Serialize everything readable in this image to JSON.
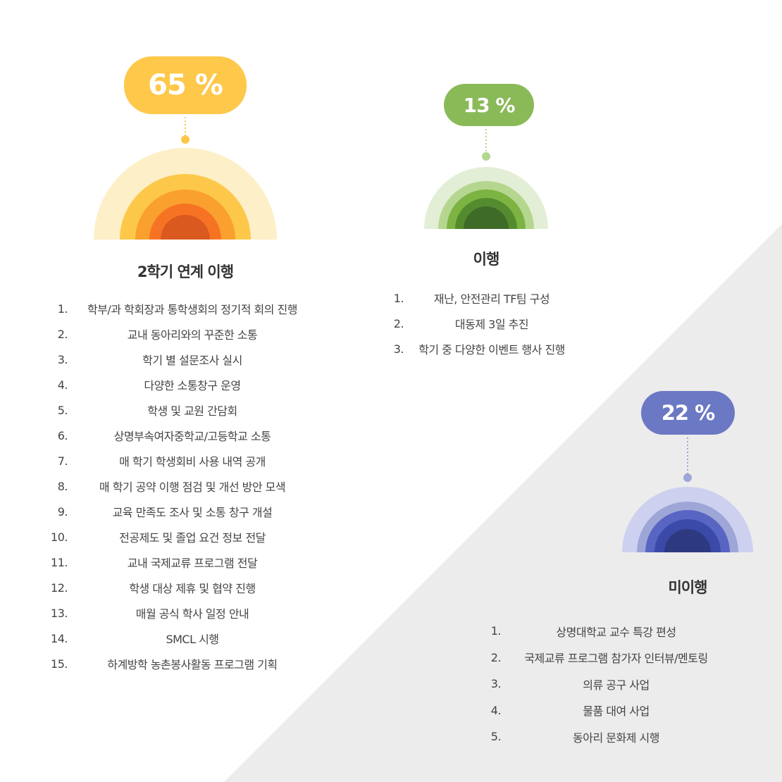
{
  "groups": [
    {
      "id": "linked",
      "percent": "65 %",
      "value": 65,
      "heading": "2학기 연계 이행",
      "color": "#fec84a",
      "rings": [
        "#fdefc7",
        "#fdc84a",
        "#f9a02e",
        "#f77324",
        "#d9591f"
      ],
      "items": [
        "학부/과 학회장과 통학생회의 정기적 회의 진행",
        "교내 동아리와의 꾸준한 소통",
        "학기 별 설문조사 실시",
        "다양한 소통창구 운영",
        "학생 및 교원 간담회",
        "상명부속여자중학교/고등학교 소통",
        "매 학기 학생회비 사용 내역 공개",
        "매 학기 공약 이행 점검 및 개선 방안 모색",
        "교육 만족도 조사 및 소통 창구 개설",
        "전공제도 및 졸업 요건 정보 전달",
        "교내 국제교류 프로그램 전달",
        "학생 대상 제휴 및 협약 진행",
        "매월 공식 학사 일정 안내",
        "SMCL 시행",
        "하계방학 농촌봉사활동 프로그램 기획"
      ]
    },
    {
      "id": "done",
      "percent": "13 %",
      "value": 13,
      "heading": "이행",
      "color": "#8aba58",
      "rings": [
        "#e3eed6",
        "#b5d68f",
        "#7cb342",
        "#558b2f",
        "#3f6b28"
      ],
      "items": [
        "재난, 안전관리  TF팀 구성",
        "대동제 3일 추진",
        "학기 중 다양한 이벤트 행사 진행"
      ]
    },
    {
      "id": "notdone",
      "percent": "22 %",
      "value": 22,
      "heading": "미이행",
      "color": "#6b78c4",
      "rings": [
        "#cdd1ef",
        "#9ea6d8",
        "#5865c2",
        "#3b49a8",
        "#2d3a80"
      ],
      "items": [
        "상명대학교 교수 특강 편성",
        "국제교류 프로그램 참가자 인터뷰/멘토링",
        "의류 공구 사업",
        "물품 대여 사업",
        "동아리 문화제 시행"
      ]
    }
  ],
  "background_accent": "#ececec"
}
